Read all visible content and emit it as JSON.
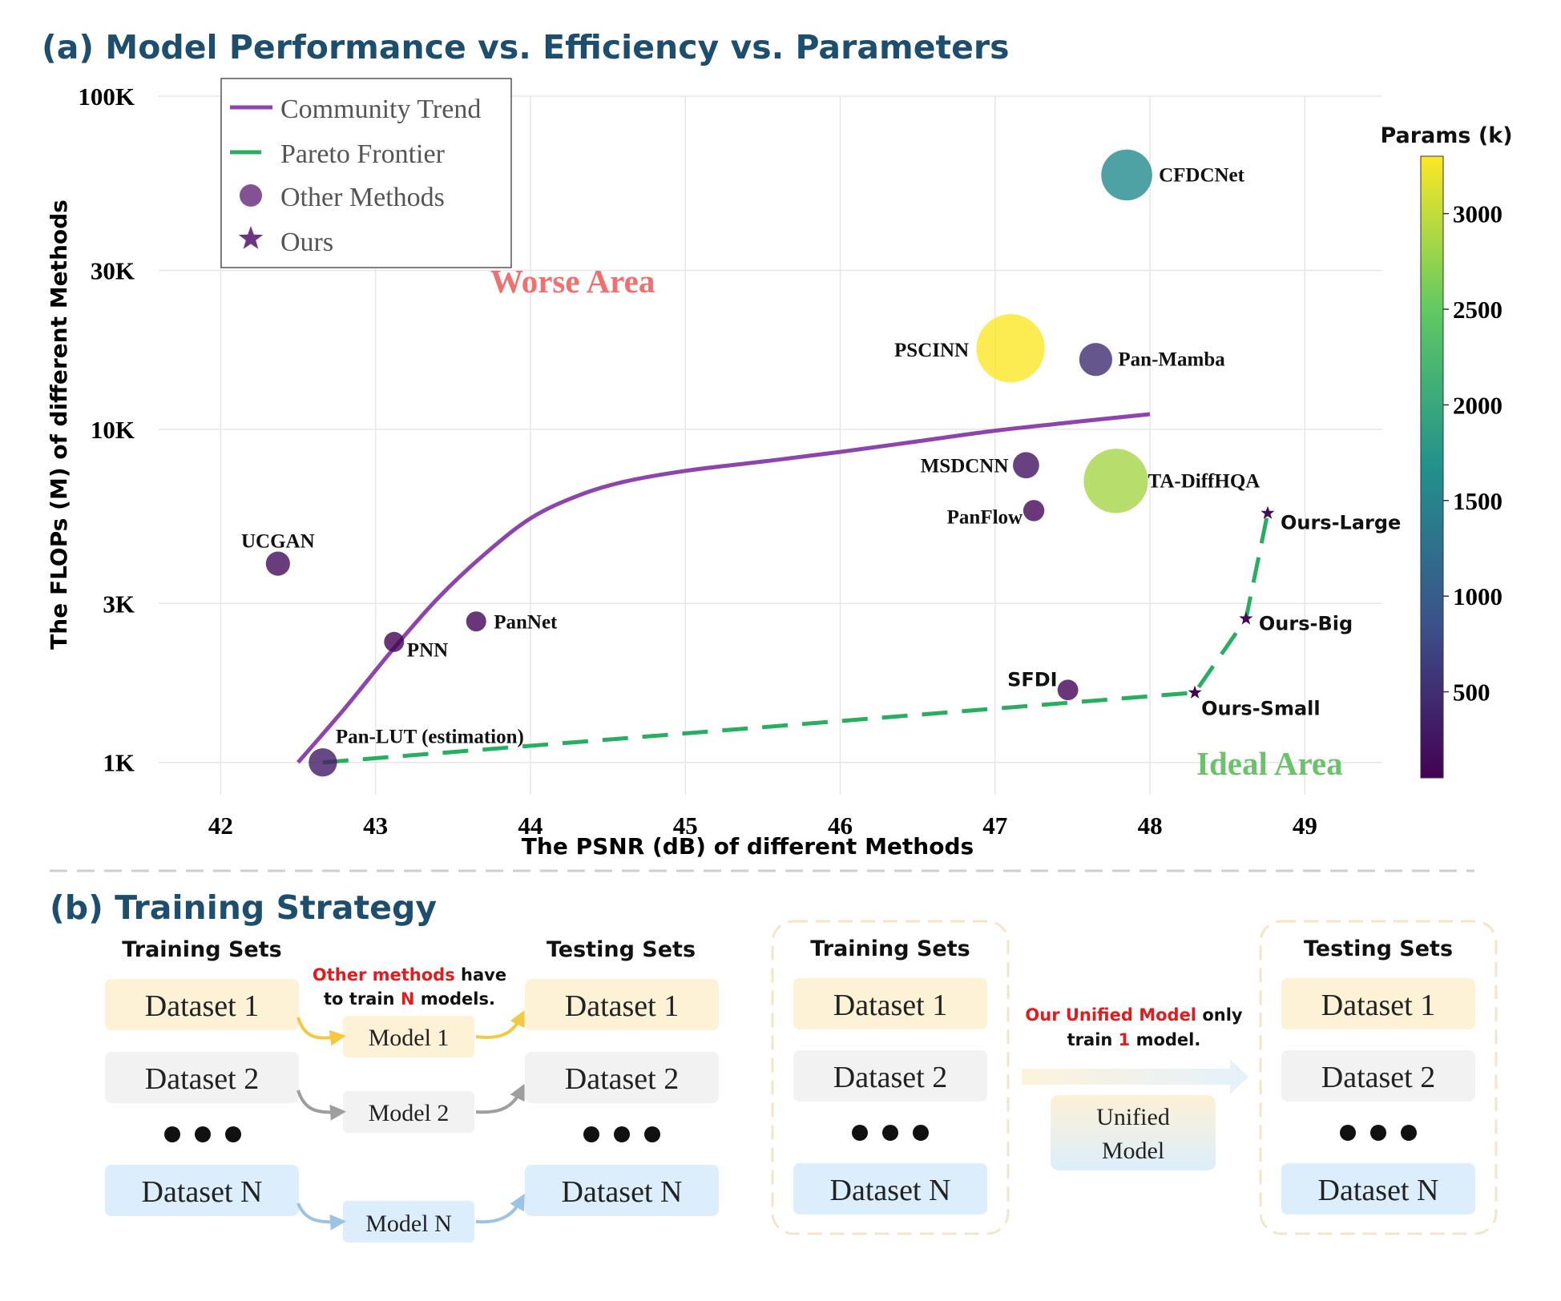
{
  "panel_a": {
    "title": "(a) Model Performance vs. Efficiency vs. Parameters",
    "worse_area": "Worse Area",
    "ideal_area": "Ideal Area",
    "colorbar": {
      "title": "Params (k)",
      "ticks": [
        "3000",
        "2500",
        "2000",
        "1500",
        "1000",
        "500"
      ],
      "tick_values": [
        3000,
        2500,
        2000,
        1500,
        1000,
        500
      ],
      "range": [
        50,
        3300
      ]
    },
    "legend": {
      "items": [
        {
          "label": "Community Trend",
          "marker": "line",
          "color": "#8e44ad"
        },
        {
          "label": "Pareto Frontier",
          "marker": "dash",
          "color": "#27ae60"
        },
        {
          "label": "Other Methods",
          "marker": "circle",
          "color": "#6c3483"
        },
        {
          "label": "Ours",
          "marker": "star",
          "color": "#6c3483"
        }
      ]
    }
  },
  "chart_data": {
    "type": "scatter",
    "xlabel": "The PSNR (dB) of different Methods",
    "ylabel": "The FLOPs (M) of different Methods",
    "xlim": [
      41.6,
      49.5
    ],
    "ylim": [
      800,
      100000
    ],
    "yscale": "log",
    "xticks": [
      42,
      43,
      44,
      45,
      46,
      47,
      48,
      49
    ],
    "yticks": [
      {
        "value": 1000,
        "label": "1K"
      },
      {
        "value": 3000,
        "label": "3K"
      },
      {
        "value": 10000,
        "label": "10K"
      },
      {
        "value": 30000,
        "label": "30K"
      },
      {
        "value": 100000,
        "label": "100K"
      }
    ],
    "grid": true,
    "legend_position": "top-left",
    "points": [
      {
        "name": "CFDCNet",
        "x": 47.85,
        "y": 58000,
        "params": 1600,
        "marker": "circle"
      },
      {
        "name": "PSCINN",
        "x": 47.1,
        "y": 17500,
        "params": 3300,
        "marker": "circle"
      },
      {
        "name": "Pan-Mamba",
        "x": 47.65,
        "y": 16200,
        "params": 480,
        "marker": "circle"
      },
      {
        "name": "MSDCNN",
        "x": 47.2,
        "y": 7800,
        "params": 230,
        "marker": "circle"
      },
      {
        "name": "TA-DiffHQA",
        "x": 47.78,
        "y": 7000,
        "params": 2850,
        "marker": "circle"
      },
      {
        "name": "PanFlow",
        "x": 47.25,
        "y": 5700,
        "params": 100,
        "marker": "circle"
      },
      {
        "name": "UCGAN",
        "x": 42.37,
        "y": 3950,
        "params": 170,
        "marker": "circle"
      },
      {
        "name": "PanNet",
        "x": 43.65,
        "y": 2650,
        "params": 80,
        "marker": "circle"
      },
      {
        "name": "PNN",
        "x": 43.12,
        "y": 2300,
        "params": 80,
        "marker": "circle"
      },
      {
        "name": "SFDI",
        "x": 47.47,
        "y": 1650,
        "params": 90,
        "marker": "circle"
      },
      {
        "name": "Pan-LUT (estimation)",
        "x": 42.66,
        "y": 1000,
        "params": 300,
        "marker": "circle"
      },
      {
        "name": "Ours-Large",
        "x": 48.76,
        "y": 5600,
        "params": 150,
        "marker": "star"
      },
      {
        "name": "Ours-Big",
        "x": 48.62,
        "y": 2700,
        "params": 120,
        "marker": "star"
      },
      {
        "name": "Ours-Small",
        "x": 48.29,
        "y": 1620,
        "params": 60,
        "marker": "star"
      }
    ],
    "community_trend": {
      "color": "#8e44ad",
      "x": [
        42.5,
        42.8,
        43.1,
        43.4,
        43.7,
        44.0,
        44.3,
        44.6,
        45.0,
        45.5,
        46.0,
        46.5,
        47.0,
        47.5,
        48.0
      ],
      "y": [
        1000,
        1450,
        2150,
        3100,
        4200,
        5400,
        6300,
        6950,
        7500,
        8000,
        8550,
        9200,
        9900,
        10500,
        11100
      ]
    },
    "pareto_frontier": {
      "color": "#27ae60",
      "x": [
        42.66,
        48.29,
        48.62,
        48.76
      ],
      "y": [
        1000,
        1620,
        2700,
        5600
      ]
    }
  },
  "panel_b": {
    "title": "(b) Training Strategy",
    "left": {
      "training_head": "Training Sets",
      "testing_head": "Testing Sets",
      "note_red_1": "Other methods",
      "note_black_1": " have",
      "note_black_2": "to train ",
      "note_red_2": "N",
      "note_black_3": " models.",
      "train": [
        "Dataset 1",
        "Dataset 2",
        "Dataset N"
      ],
      "test": [
        "Dataset 1",
        "Dataset 2",
        "Dataset N"
      ],
      "models": [
        "Model 1",
        "Model 2",
        "Model N"
      ]
    },
    "right": {
      "training_head": "Training Sets",
      "testing_head": "Testing Sets",
      "note_red_1": "Our Unified Model",
      "note_black_1": " only",
      "note_black_2": "train ",
      "note_red_2": "1",
      "note_black_3": " model.",
      "train": [
        "Dataset 1",
        "Dataset 2",
        "Dataset N"
      ],
      "test": [
        "Dataset 1",
        "Dataset 2",
        "Dataset N"
      ],
      "model_line1": "Unified",
      "model_line2": "Model"
    }
  }
}
